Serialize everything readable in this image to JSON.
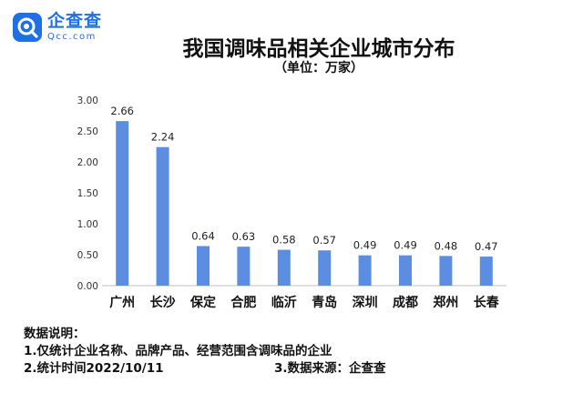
{
  "brand": {
    "name": "企查查",
    "url": "Qcc.com",
    "color": "#1f6fe5"
  },
  "title": "我国调味品相关企业城市分布",
  "subtitle": "（单位：万家）",
  "chart_data": {
    "type": "bar",
    "categories": [
      "广州",
      "长沙",
      "保定",
      "合肥",
      "临沂",
      "青岛",
      "深圳",
      "成都",
      "郑州",
      "长春"
    ],
    "values": [
      2.66,
      2.24,
      0.64,
      0.63,
      0.58,
      0.57,
      0.49,
      0.49,
      0.48,
      0.47
    ],
    "value_labels": [
      "2.66",
      "2.24",
      "0.64",
      "0.63",
      "0.58",
      "0.57",
      "0.49",
      "0.49",
      "0.48",
      "0.47"
    ],
    "ylim": [
      0,
      3
    ],
    "yticks": [
      "0.00",
      "0.50",
      "1.00",
      "1.50",
      "2.00",
      "2.50",
      "3.00"
    ],
    "bar_color": "#5b8ee0",
    "grid": false,
    "legend": "none"
  },
  "notes": {
    "heading": "数据说明：",
    "line1": "1.仅统计企业名称、品牌产品、经营范围含调味品的企业",
    "line2": "2.统计时间2022/10/11",
    "line3": "3.数据来源：企查查"
  }
}
